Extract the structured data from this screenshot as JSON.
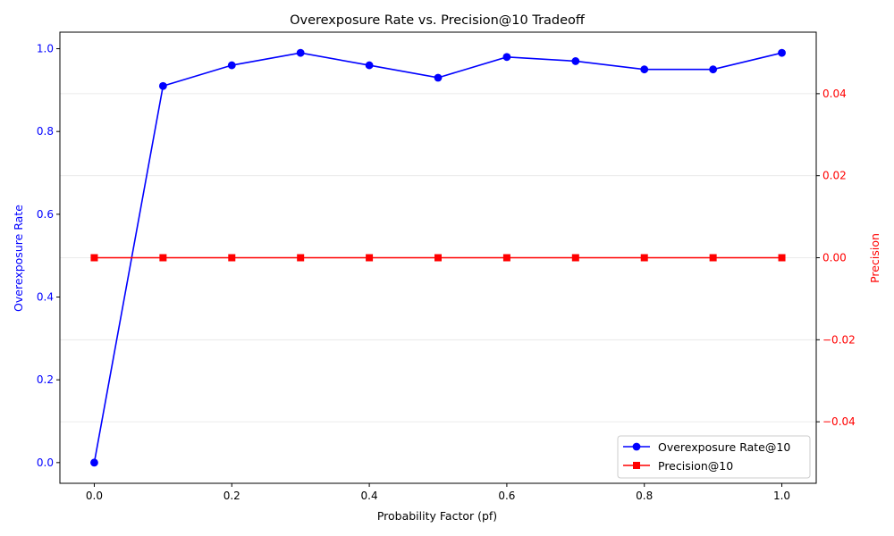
{
  "chart_data": {
    "type": "line",
    "title": "Overexposure Rate vs. Precision@10 Tradeoff",
    "xlabel": "Probability Factor (pf)",
    "ylabel_left": "Overexposure Rate",
    "ylabel_right": "Precision",
    "x": [
      0.0,
      0.1,
      0.2,
      0.3,
      0.4,
      0.5,
      0.6,
      0.7,
      0.8,
      0.9,
      1.0
    ],
    "x_ticks": [
      "0.0",
      "0.2",
      "0.4",
      "0.6",
      "0.8",
      "1.0"
    ],
    "xlim": [
      -0.05,
      1.05
    ],
    "ylim_left": [
      -0.05,
      1.04
    ],
    "y_ticks_left": [
      "0.0",
      "0.2",
      "0.4",
      "0.6",
      "0.8",
      "1.0"
    ],
    "ylim_right": [
      -0.055,
      0.055
    ],
    "y_ticks_right": [
      "−0.04",
      "−0.02",
      "0.00",
      "0.02",
      "0.04"
    ],
    "series": [
      {
        "name": "Overexposure Rate@10",
        "axis": "left",
        "color": "#0000ff",
        "marker": "circle",
        "values": [
          0.0,
          0.91,
          0.96,
          0.99,
          0.96,
          0.93,
          0.98,
          0.97,
          0.95,
          0.95,
          0.99
        ]
      },
      {
        "name": "Precision@10",
        "axis": "right",
        "color": "#ff0000",
        "marker": "square",
        "values": [
          0.0,
          0.0,
          0.0,
          0.0,
          0.0,
          0.0,
          0.0,
          0.0,
          0.0,
          0.0,
          0.0
        ]
      }
    ],
    "grid": "horizontal (right axis ticks)",
    "legend_position": "lower-right"
  }
}
